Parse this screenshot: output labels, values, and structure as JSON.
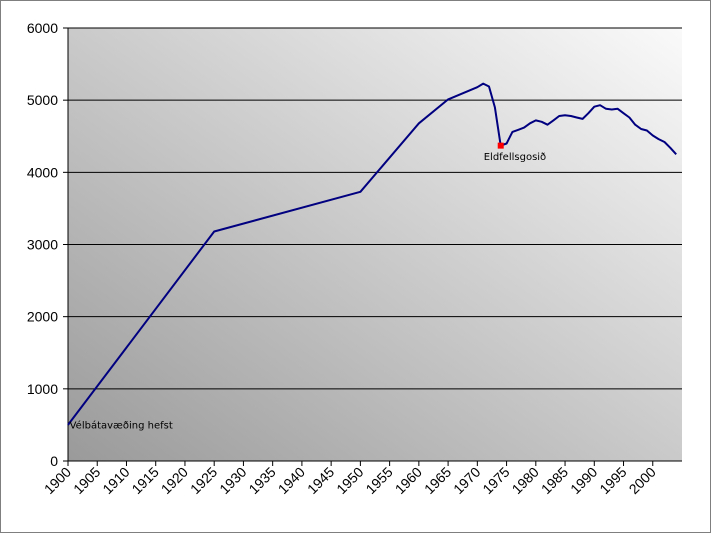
{
  "chart_data": {
    "type": "line",
    "title": "",
    "xlabel": "",
    "ylabel": "",
    "xlim": [
      1900,
      2005
    ],
    "ylim": [
      0,
      6000
    ],
    "x_ticks": [
      1900,
      1905,
      1910,
      1915,
      1920,
      1925,
      1930,
      1935,
      1940,
      1945,
      1950,
      1955,
      1960,
      1965,
      1970,
      1975,
      1980,
      1985,
      1990,
      1995,
      2000
    ],
    "y_ticks": [
      0,
      1000,
      2000,
      3000,
      4000,
      5000,
      6000
    ],
    "grid": "horizontal",
    "legend": "none",
    "series": [
      {
        "color": "#000080",
        "points": [
          [
            1900,
            500
          ],
          [
            1925,
            3180
          ],
          [
            1950,
            3730
          ],
          [
            1960,
            4680
          ],
          [
            1965,
            5010
          ],
          [
            1970,
            5180
          ],
          [
            1971,
            5230
          ],
          [
            1972,
            5190
          ],
          [
            1973,
            4900
          ],
          [
            1974,
            4370
          ],
          [
            1975,
            4400
          ],
          [
            1976,
            4560
          ],
          [
            1977,
            4590
          ],
          [
            1978,
            4620
          ],
          [
            1979,
            4680
          ],
          [
            1980,
            4720
          ],
          [
            1981,
            4700
          ],
          [
            1982,
            4660
          ],
          [
            1983,
            4720
          ],
          [
            1984,
            4780
          ],
          [
            1985,
            4790
          ],
          [
            1986,
            4780
          ],
          [
            1987,
            4760
          ],
          [
            1988,
            4740
          ],
          [
            1989,
            4820
          ],
          [
            1990,
            4910
          ],
          [
            1991,
            4930
          ],
          [
            1992,
            4880
          ],
          [
            1993,
            4870
          ],
          [
            1994,
            4880
          ],
          [
            1995,
            4820
          ],
          [
            1996,
            4760
          ],
          [
            1997,
            4660
          ],
          [
            1998,
            4600
          ],
          [
            1999,
            4580
          ],
          [
            2000,
            4510
          ],
          [
            2001,
            4460
          ],
          [
            2002,
            4420
          ],
          [
            2003,
            4340
          ],
          [
            2004,
            4250
          ]
        ]
      }
    ],
    "markers": [
      {
        "x": 1974,
        "y": 4370,
        "color": "#ff0000"
      }
    ],
    "annotations": [
      {
        "text": "Eldfellsgosið",
        "x": 1974,
        "y": 4200
      },
      {
        "text": "Vélbátavæðing hefst",
        "x": 1902.5,
        "y": 480
      }
    ]
  },
  "colors": {
    "line": "#000080",
    "marker": "#ff0000",
    "plot_bg_dark": "#9c9c9c",
    "plot_bg_light": "#f8f8f8",
    "gridline": "#000000"
  }
}
